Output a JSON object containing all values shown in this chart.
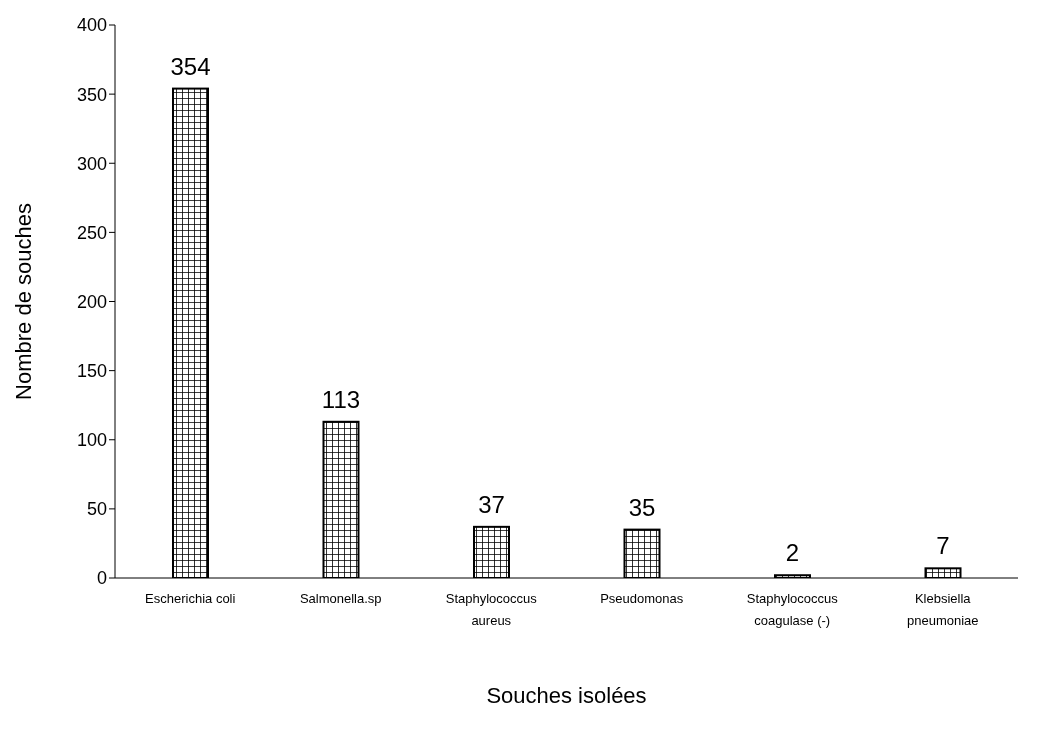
{
  "chart_data": {
    "type": "bar",
    "xlabel": "Souches isolées",
    "ylabel": "Nombre de souches",
    "categories": [
      "Escherichia coli",
      "Salmonella.sp",
      "Staphylococcus aureus",
      "Pseudomonas",
      "Staphylococcus coagulase (-)",
      "Klebsiella pneumoniae"
    ],
    "values": [
      354,
      113,
      37,
      35,
      2,
      7
    ],
    "color": "#000000",
    "data_labels": true,
    "grid": false,
    "legend": false,
    "ylim": [
      0,
      400
    ],
    "yticks": [
      0,
      50,
      100,
      150,
      200,
      250,
      300,
      350,
      400
    ]
  }
}
